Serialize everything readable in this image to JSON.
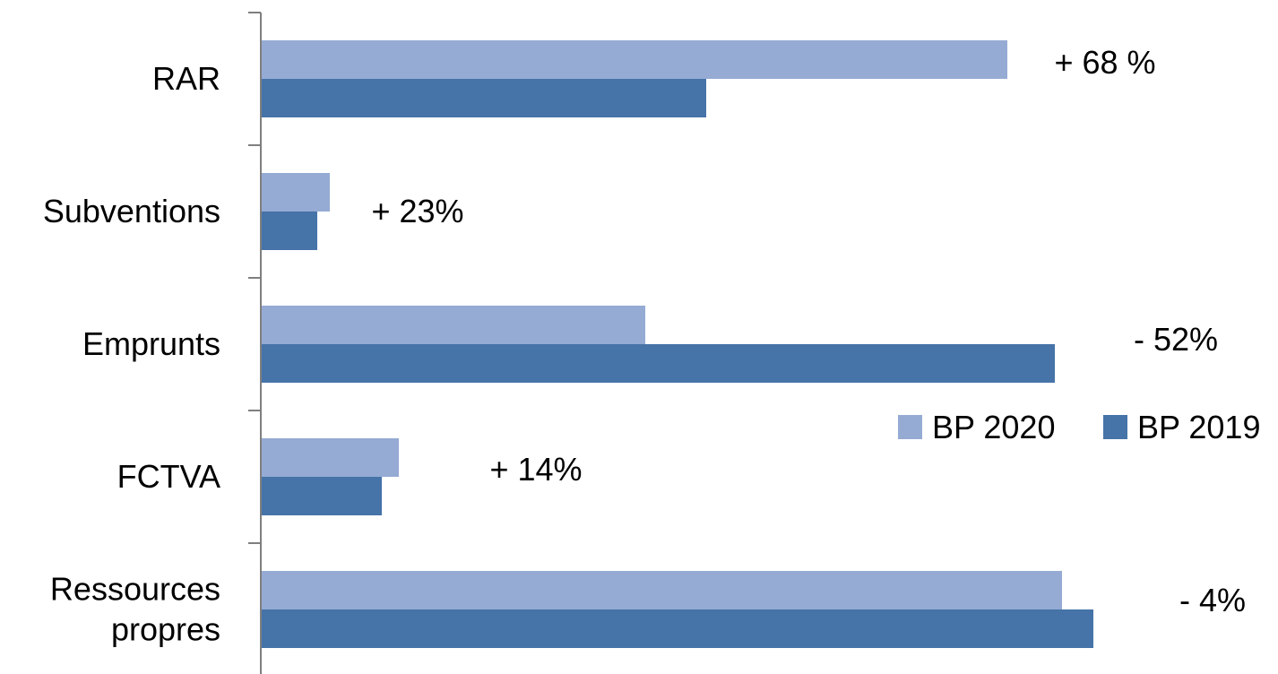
{
  "chart_data": {
    "type": "bar",
    "orientation": "horizontal",
    "categories": [
      "RAR",
      "Subventions",
      "Emprunts",
      "FCTVA",
      "Ressources propres"
    ],
    "category_lines": [
      [
        "RAR"
      ],
      [
        "Subventions"
      ],
      [
        "Emprunts"
      ],
      [
        "FCTVA"
      ],
      [
        "Ressources",
        "propres"
      ]
    ],
    "series": [
      {
        "name": "BP 2020",
        "color": "#95abd4",
        "values": [
          832,
          76,
          428,
          153,
          893
        ]
      },
      {
        "name": "BP 2019",
        "color": "#4673a8",
        "values": [
          496,
          62,
          885,
          134,
          928
        ]
      }
    ],
    "annotations": [
      "+ 68 %",
      "+ 23%",
      "- 52%",
      "+ 14%",
      "- 4%"
    ],
    "xlim": [
      0,
      1000
    ],
    "grid": false,
    "legend": "right"
  }
}
